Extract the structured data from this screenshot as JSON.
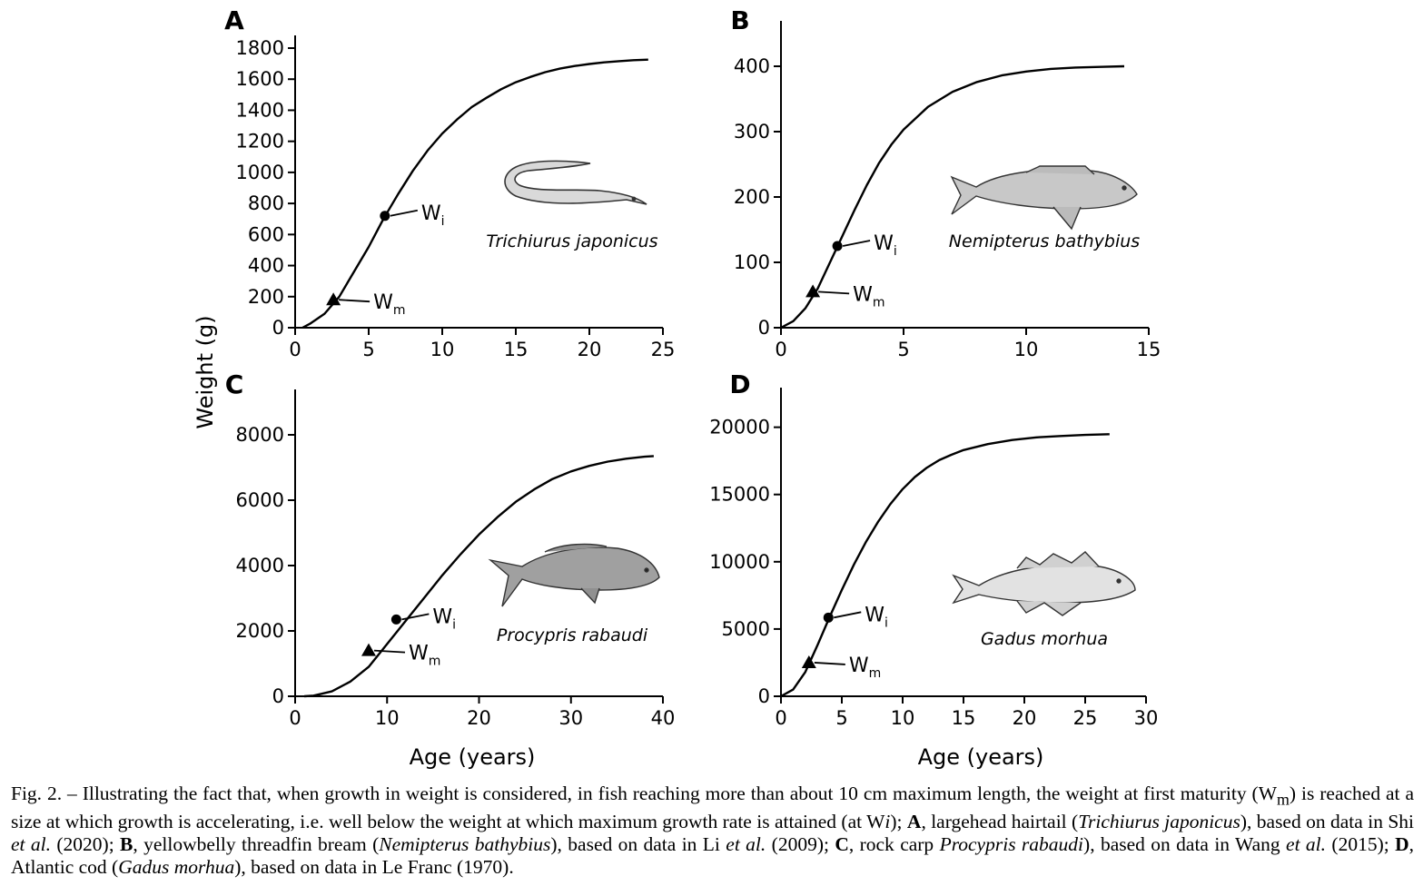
{
  "figure": {
    "y_axis_title": "Weight (g)",
    "x_axis_title": "Age (years)"
  },
  "chart_data": [
    {
      "panel": "A",
      "type": "line",
      "species": "Trichiurus japonicus",
      "xlim": [
        0,
        25
      ],
      "ylim": [
        0,
        1800
      ],
      "xticks": [
        0,
        5,
        10,
        15,
        20,
        25
      ],
      "yticks": [
        0,
        200,
        400,
        600,
        800,
        1000,
        1200,
        1400,
        1600,
        1800
      ],
      "x": [
        0.5,
        1,
        2,
        3,
        4,
        5,
        6,
        7,
        8,
        9,
        10,
        11,
        12,
        13,
        14,
        15,
        16,
        17,
        18,
        19,
        20,
        21,
        22,
        23,
        24
      ],
      "y": [
        0,
        25,
        90,
        200,
        360,
        520,
        700,
        860,
        1010,
        1140,
        1250,
        1340,
        1420,
        1480,
        1535,
        1580,
        1615,
        1645,
        1668,
        1685,
        1698,
        1708,
        1716,
        1722,
        1726
      ],
      "markers": [
        {
          "label": "W",
          "sub": "i",
          "x": 6.1,
          "y": 720,
          "shape": "circle"
        },
        {
          "label": "W",
          "sub": "m",
          "x": 2.6,
          "y": 180,
          "shape": "triangle"
        }
      ]
    },
    {
      "panel": "B",
      "type": "line",
      "species": "Nemipterus bathybius",
      "xlim": [
        0,
        15
      ],
      "ylim": [
        0,
        450
      ],
      "xticks": [
        0,
        5,
        10,
        15
      ],
      "yticks": [
        0,
        100,
        200,
        300,
        400
      ],
      "x": [
        0,
        0.5,
        1,
        1.5,
        2,
        2.5,
        3,
        3.5,
        4,
        4.5,
        5,
        6,
        7,
        8,
        9,
        10,
        11,
        12,
        13,
        14
      ],
      "y": [
        0,
        10,
        30,
        60,
        100,
        140,
        180,
        218,
        252,
        280,
        303,
        338,
        361,
        376,
        386,
        392,
        396,
        398,
        399,
        400
      ],
      "markers": [
        {
          "label": "W",
          "sub": "i",
          "x": 2.3,
          "y": 125,
          "shape": "circle"
        },
        {
          "label": "W",
          "sub": "m",
          "x": 1.3,
          "y": 55,
          "shape": "triangle"
        }
      ]
    },
    {
      "panel": "C",
      "type": "line",
      "species": "Procypris rabaudi",
      "xlim": [
        0,
        40
      ],
      "ylim": [
        0,
        9000
      ],
      "xticks": [
        0,
        10,
        20,
        30,
        40
      ],
      "yticks": [
        0,
        2000,
        4000,
        6000,
        8000
      ],
      "x": [
        1,
        2,
        4,
        6,
        8,
        10,
        12,
        14,
        16,
        18,
        20,
        22,
        24,
        26,
        28,
        30,
        32,
        34,
        36,
        38,
        39
      ],
      "y": [
        0,
        20,
        150,
        450,
        900,
        1600,
        2300,
        3000,
        3700,
        4350,
        4950,
        5480,
        5950,
        6330,
        6650,
        6880,
        7050,
        7180,
        7270,
        7330,
        7350
      ],
      "markers": [
        {
          "label": "W",
          "sub": "i",
          "x": 11,
          "y": 2350,
          "shape": "circle"
        },
        {
          "label": "W",
          "sub": "m",
          "x": 8,
          "y": 1400,
          "shape": "triangle"
        }
      ]
    },
    {
      "panel": "D",
      "type": "line",
      "species": "Gadus morhua",
      "xlim": [
        0,
        30
      ],
      "ylim": [
        0,
        22000
      ],
      "xticks": [
        0,
        5,
        10,
        15,
        20,
        25,
        30
      ],
      "yticks": [
        0,
        5000,
        10000,
        15000,
        20000
      ],
      "x": [
        0,
        1,
        2,
        3,
        4,
        5,
        6,
        7,
        8,
        9,
        10,
        11,
        12,
        13,
        14,
        15,
        17,
        19,
        21,
        23,
        25,
        27
      ],
      "y": [
        0,
        500,
        1800,
        3800,
        5900,
        7900,
        9800,
        11500,
        13000,
        14300,
        15400,
        16300,
        17000,
        17550,
        17950,
        18300,
        18750,
        19050,
        19250,
        19350,
        19430,
        19480
      ],
      "markers": [
        {
          "label": "W",
          "sub": "i",
          "x": 3.9,
          "y": 5850,
          "shape": "circle"
        },
        {
          "label": "W",
          "sub": "m",
          "x": 2.3,
          "y": 2500,
          "shape": "triangle"
        }
      ]
    }
  ],
  "caption": {
    "fig_label": "Fig. 2.",
    "s1": " – Illustrating the fact that, when growth in weight is considered, in fish reaching more than about 10 cm maximum length, the weight at first maturity (W",
    "s1_sub": "m",
    "s2": ") is reached at a size at which growth is accelerating, i.e. well below the weight at which maximum growth rate is attained (at W",
    "s2_it": "i",
    "s3": "); ",
    "a_letter": "A",
    "a_text": ", largehead hairtail (",
    "a_species": "Trichiurus japonicus",
    "a_text2": "),  based on data in Shi ",
    "etal": "et al.",
    "a_ref": " (2020); ",
    "b_letter": "B",
    "b_text": ", yellowbelly threadfin bream (",
    "b_species": "Nemipterus bathybius",
    "b_text2": "), based on data in Li ",
    "b_ref": " (2009); ",
    "c_letter": "C",
    "c_text": ", rock carp ",
    "c_species": "Procypris rabaudi",
    "c_text2": "), based on data in Wang ",
    "c_ref": " (2015); ",
    "d_letter": "D",
    "d_text": ", Atlantic cod (",
    "d_species": "Gadus morhua",
    "d_text2": "), based on data in Le Franc (1970)."
  }
}
